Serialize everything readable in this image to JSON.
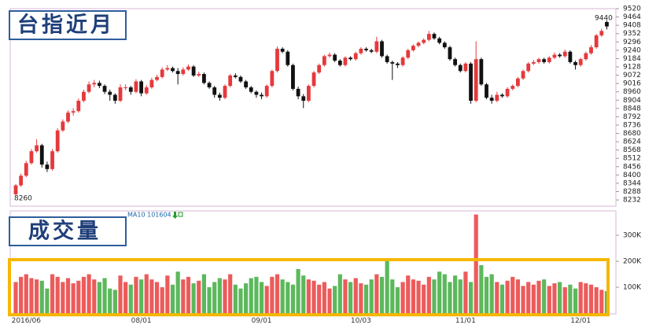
{
  "chart_data": {
    "type": "candlestick",
    "price_title": "台指近月",
    "volume_title": "成交量",
    "ma_label": "MA10 101604",
    "low_label": 8260,
    "high_label": 9440,
    "up_color": "#e5393c",
    "down_color": "#111111",
    "volume_up_color": "#ec5b5b",
    "volume_down_color": "#5cb85c",
    "ylim": [
      8190,
      9520
    ],
    "yticks": [
      8232,
      8288,
      8344,
      8400,
      8456,
      8512,
      8568,
      8624,
      8680,
      8736,
      8792,
      8848,
      8904,
      8960,
      9016,
      9072,
      9128,
      9184,
      9240,
      9296,
      9352,
      9408,
      9464,
      9520
    ],
    "y2lim": [
      0,
      400000
    ],
    "y2ticks": [
      {
        "value": 100000,
        "label": "100K"
      },
      {
        "value": 200000,
        "label": "200K"
      },
      {
        "value": 300000,
        "label": "300K"
      }
    ],
    "categories": [
      null,
      null,
      "2016/06",
      null,
      null,
      null,
      null,
      null,
      null,
      null,
      null,
      null,
      null,
      null,
      null,
      null,
      null,
      null,
      null,
      null,
      null,
      null,
      null,
      null,
      "08/01",
      null,
      null,
      null,
      null,
      null,
      null,
      null,
      null,
      null,
      null,
      null,
      null,
      null,
      null,
      null,
      null,
      null,
      null,
      null,
      null,
      null,
      null,
      "09/01",
      null,
      null,
      null,
      null,
      null,
      null,
      null,
      null,
      null,
      null,
      null,
      null,
      null,
      null,
      null,
      null,
      null,
      null,
      "10/03",
      null,
      null,
      null,
      null,
      null,
      null,
      null,
      null,
      null,
      null,
      null,
      null,
      null,
      null,
      null,
      null,
      null,
      null,
      null,
      "11/01",
      null,
      null,
      null,
      null,
      null,
      null,
      null,
      null,
      null,
      null,
      null,
      null,
      null,
      null,
      null,
      null,
      null,
      null,
      null,
      null,
      null,
      "12/01",
      null,
      null,
      null,
      null,
      null
    ],
    "ohlc": [
      [
        8270,
        8340,
        8260,
        8330
      ],
      [
        8330,
        8410,
        8320,
        8395
      ],
      [
        8395,
        8495,
        8385,
        8480
      ],
      [
        8480,
        8575,
        8470,
        8560
      ],
      [
        8560,
        8640,
        8550,
        8600
      ],
      [
        8600,
        8610,
        8450,
        8470
      ],
      [
        8470,
        8490,
        8420,
        8440
      ],
      [
        8440,
        8575,
        8430,
        8560
      ],
      [
        8560,
        8715,
        8550,
        8700
      ],
      [
        8700,
        8775,
        8690,
        8760
      ],
      [
        8760,
        8835,
        8750,
        8820
      ],
      [
        8820,
        8850,
        8800,
        8830
      ],
      [
        8830,
        8915,
        8820,
        8900
      ],
      [
        8900,
        8975,
        8890,
        8960
      ],
      [
        8960,
        9030,
        8950,
        9010
      ],
      [
        9010,
        9040,
        8990,
        9020
      ],
      [
        9020,
        9035,
        8985,
        9000
      ],
      [
        9000,
        9010,
        8945,
        8960
      ],
      [
        8960,
        8975,
        8900,
        8940
      ],
      [
        8940,
        8950,
        8880,
        8900
      ],
      [
        8900,
        9010,
        8890,
        8990
      ],
      [
        8990,
        9010,
        8970,
        8990
      ],
      [
        8990,
        9000,
        8940,
        8960
      ],
      [
        8960,
        9045,
        8950,
        9030
      ],
      [
        9030,
        9040,
        8930,
        8950
      ],
      [
        8950,
        9005,
        8940,
        8990
      ],
      [
        8990,
        9055,
        8980,
        9040
      ],
      [
        9040,
        9075,
        9030,
        9060
      ],
      [
        9060,
        9125,
        9050,
        9110
      ],
      [
        9110,
        9140,
        9100,
        9120
      ],
      [
        9120,
        9130,
        9090,
        9100
      ],
      [
        9100,
        9120,
        9010,
        9080
      ],
      [
        9080,
        9125,
        9070,
        9110
      ],
      [
        9110,
        9145,
        9100,
        9130
      ],
      [
        9130,
        9140,
        9060,
        9070
      ],
      [
        9070,
        9095,
        9060,
        9080
      ],
      [
        9080,
        9090,
        9010,
        9020
      ],
      [
        9020,
        9030,
        8980,
        8990
      ],
      [
        8990,
        9000,
        8920,
        8940
      ],
      [
        8940,
        8955,
        8900,
        8920
      ],
      [
        8920,
        9010,
        8910,
        9000
      ],
      [
        9000,
        9080,
        8990,
        9070
      ],
      [
        9070,
        9085,
        9050,
        9060
      ],
      [
        9060,
        9070,
        9020,
        9030
      ],
      [
        9030,
        9040,
        8980,
        8990
      ],
      [
        8990,
        9000,
        8950,
        8960
      ],
      [
        8960,
        8970,
        8920,
        8940
      ],
      [
        8940,
        8955,
        8910,
        8930
      ],
      [
        8930,
        9010,
        8920,
        9000
      ],
      [
        9000,
        9110,
        8990,
        9100
      ],
      [
        9100,
        9265,
        9090,
        9250
      ],
      [
        9250,
        9260,
        9220,
        9230
      ],
      [
        9230,
        9240,
        9130,
        9140
      ],
      [
        9140,
        9150,
        8970,
        8980
      ],
      [
        8980,
        8995,
        8910,
        8930
      ],
      [
        8930,
        8945,
        8850,
        8900
      ],
      [
        8900,
        9010,
        8890,
        9000
      ],
      [
        9000,
        9100,
        8990,
        9090
      ],
      [
        9090,
        9150,
        9080,
        9140
      ],
      [
        9140,
        9210,
        9130,
        9200
      ],
      [
        9200,
        9225,
        9190,
        9210
      ],
      [
        9210,
        9220,
        9160,
        9170
      ],
      [
        9170,
        9180,
        9130,
        9140
      ],
      [
        9140,
        9200,
        9130,
        9190
      ],
      [
        9190,
        9200,
        9170,
        9180
      ],
      [
        9180,
        9230,
        9170,
        9220
      ],
      [
        9220,
        9260,
        9210,
        9250
      ],
      [
        9250,
        9260,
        9230,
        9240
      ],
      [
        9240,
        9250,
        9220,
        9230
      ],
      [
        9230,
        9330,
        9220,
        9300
      ],
      [
        9300,
        9310,
        9190,
        9200
      ],
      [
        9200,
        9210,
        9150,
        9160
      ],
      [
        9160,
        9170,
        9040,
        9150
      ],
      [
        9150,
        9160,
        9120,
        9140
      ],
      [
        9140,
        9200,
        9130,
        9190
      ],
      [
        9190,
        9250,
        9180,
        9240
      ],
      [
        9240,
        9280,
        9230,
        9270
      ],
      [
        9270,
        9300,
        9260,
        9290
      ],
      [
        9290,
        9320,
        9280,
        9310
      ],
      [
        9310,
        9370,
        9300,
        9350
      ],
      [
        9350,
        9360,
        9310,
        9320
      ],
      [
        9320,
        9330,
        9280,
        9290
      ],
      [
        9290,
        9300,
        9250,
        9260
      ],
      [
        9260,
        9270,
        9170,
        9180
      ],
      [
        9180,
        9190,
        9130,
        9140
      ],
      [
        9140,
        9150,
        9090,
        9100
      ],
      [
        9100,
        9160,
        9090,
        9150
      ],
      [
        9150,
        9160,
        8880,
        8900
      ],
      [
        8900,
        9300,
        8890,
        9180
      ],
      [
        9180,
        9190,
        9000,
        9010
      ],
      [
        9010,
        9020,
        8910,
        8920
      ],
      [
        8920,
        8940,
        8880,
        8900
      ],
      [
        8900,
        8960,
        8890,
        8940
      ],
      [
        8940,
        8950,
        8920,
        8930
      ],
      [
        8930,
        8990,
        8920,
        8980
      ],
      [
        8980,
        9010,
        8970,
        9000
      ],
      [
        9000,
        9060,
        8990,
        9050
      ],
      [
        9050,
        9110,
        9040,
        9100
      ],
      [
        9100,
        9160,
        9090,
        9150
      ],
      [
        9150,
        9175,
        9140,
        9160
      ],
      [
        9160,
        9190,
        9150,
        9180
      ],
      [
        9180,
        9190,
        9150,
        9160
      ],
      [
        9160,
        9200,
        9150,
        9190
      ],
      [
        9190,
        9225,
        9180,
        9210
      ],
      [
        9210,
        9220,
        9190,
        9200
      ],
      [
        9200,
        9245,
        9190,
        9230
      ],
      [
        9230,
        9240,
        9150,
        9160
      ],
      [
        9160,
        9170,
        9110,
        9140
      ],
      [
        9140,
        9190,
        9130,
        9180
      ],
      [
        9180,
        9230,
        9170,
        9220
      ],
      [
        9220,
        9275,
        9210,
        9260
      ],
      [
        9260,
        9350,
        9250,
        9340
      ],
      [
        9340,
        9385,
        9330,
        9370
      ],
      [
        9430,
        9440,
        9380,
        9400
      ]
    ],
    "volume": [
      120000,
      140000,
      150000,
      135000,
      130000,
      125000,
      95000,
      150000,
      140000,
      120000,
      135000,
      115000,
      125000,
      140000,
      150000,
      130000,
      120000,
      135000,
      95000,
      90000,
      145000,
      120000,
      110000,
      140000,
      130000,
      150000,
      130000,
      120000,
      100000,
      145000,
      110000,
      160000,
      130000,
      140000,
      115000,
      125000,
      150000,
      100000,
      120000,
      135000,
      130000,
      150000,
      110000,
      95000,
      115000,
      135000,
      140000,
      120000,
      105000,
      140000,
      150000,
      130000,
      120000,
      110000,
      170000,
      145000,
      130000,
      125000,
      110000,
      120000,
      95000,
      105000,
      150000,
      130000,
      120000,
      135000,
      115000,
      110000,
      130000,
      150000,
      140000,
      200000,
      130000,
      100000,
      120000,
      145000,
      130000,
      125000,
      110000,
      140000,
      130000,
      160000,
      150000,
      120000,
      145000,
      130000,
      160000,
      120000,
      380000,
      185000,
      140000,
      150000,
      120000,
      110000,
      125000,
      140000,
      130000,
      105000,
      120000,
      110000,
      125000,
      130000,
      105000,
      115000,
      120000,
      100000,
      110000,
      95000,
      120000,
      115000,
      110000,
      100000,
      90000,
      85000
    ]
  }
}
